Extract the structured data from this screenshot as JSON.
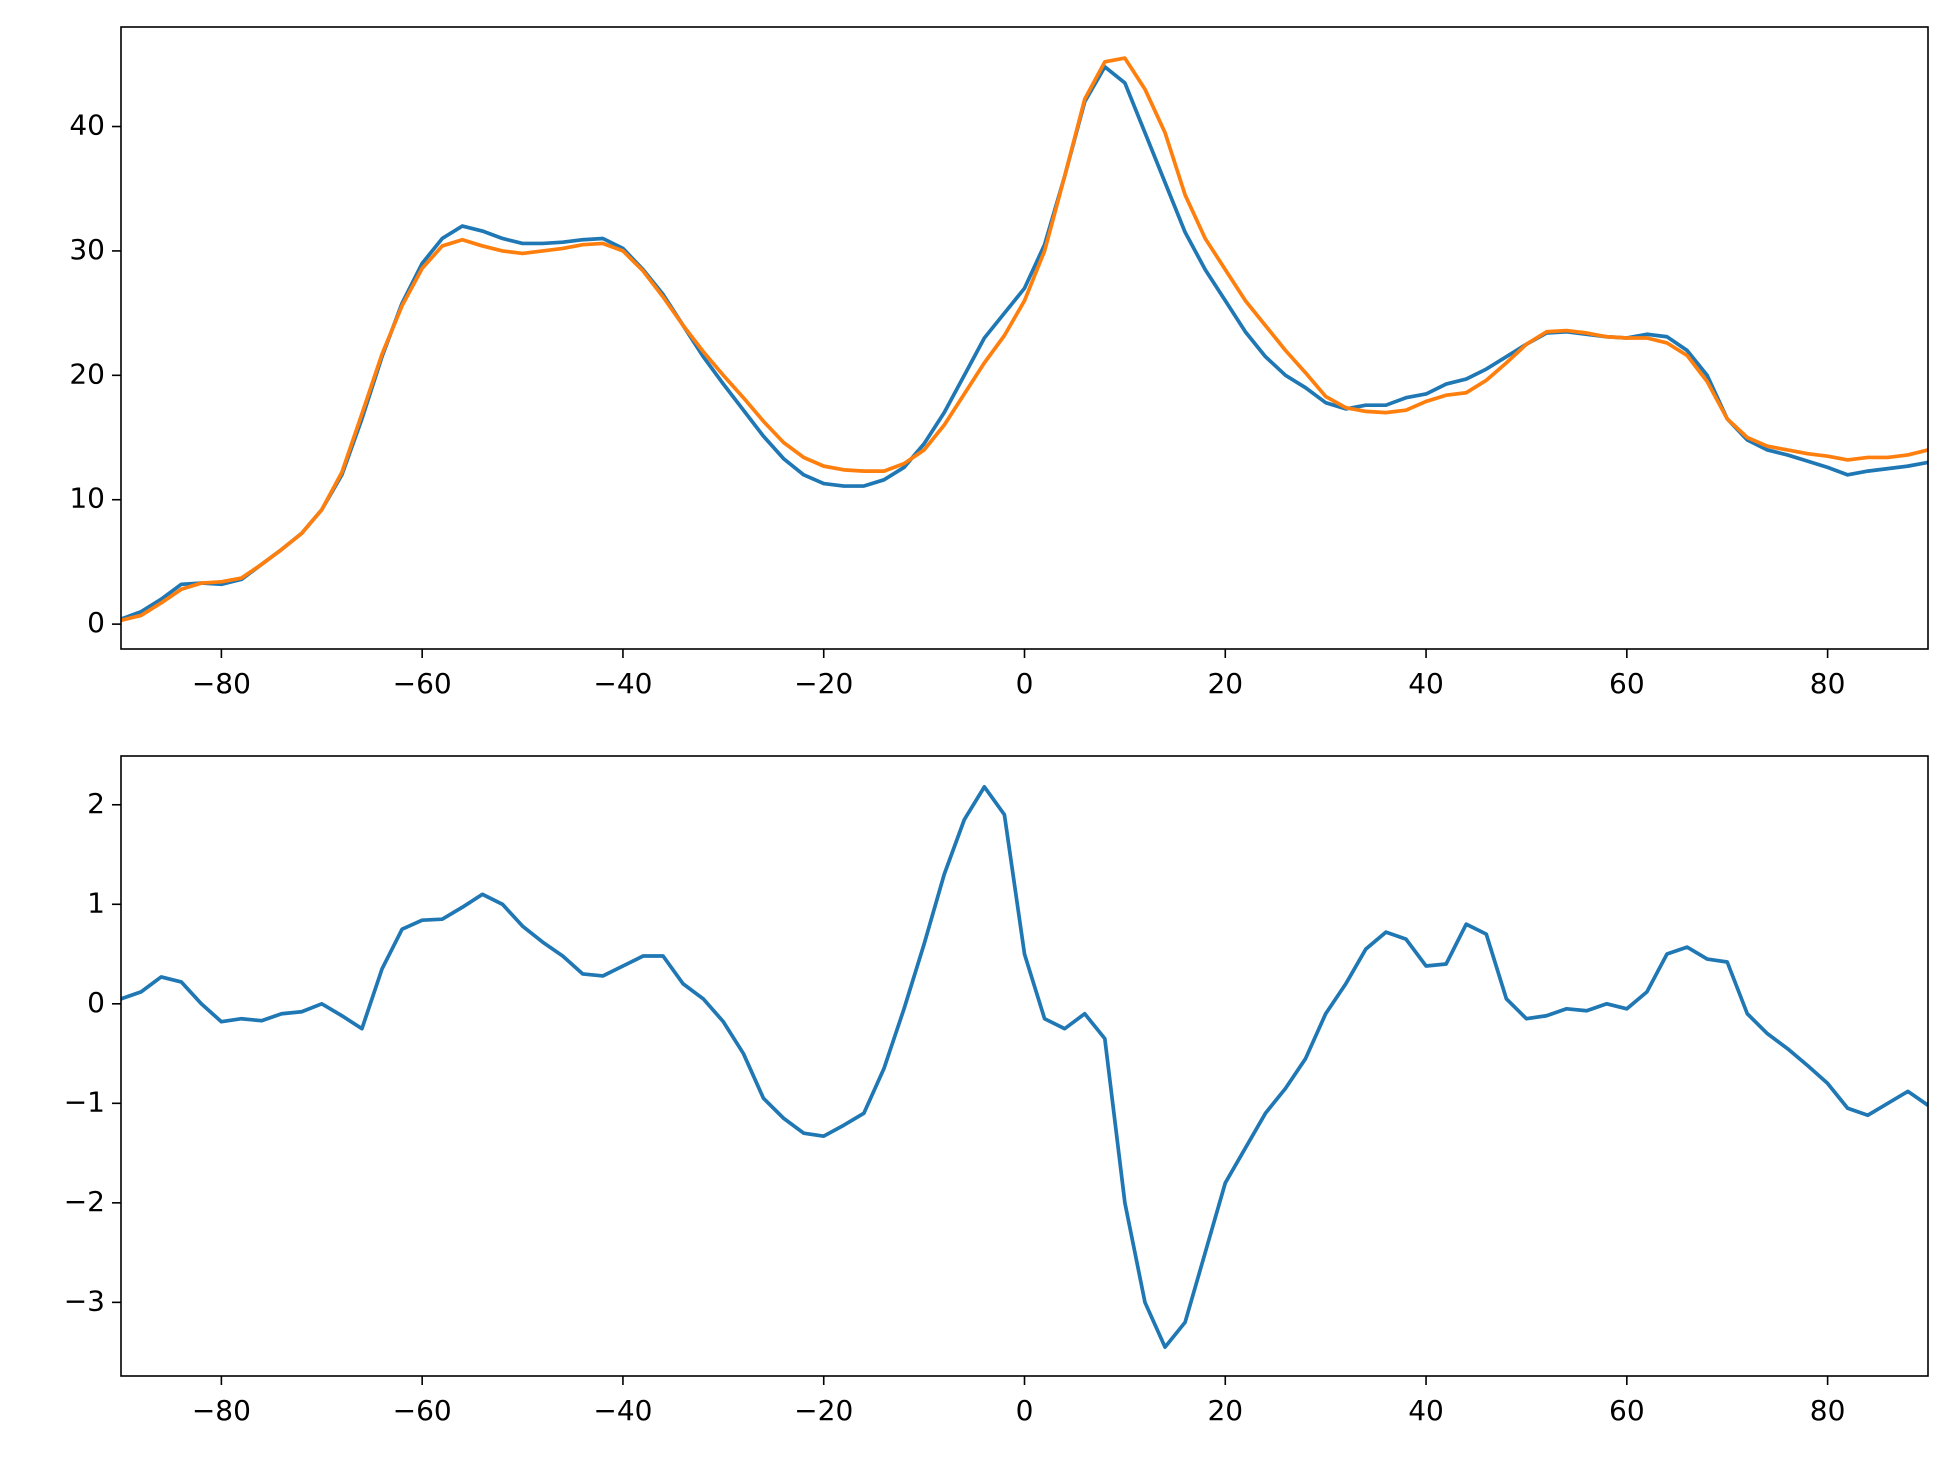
{
  "chart_data": [
    {
      "type": "line",
      "x": [
        -90,
        -88,
        -86,
        -84,
        -82,
        -80,
        -78,
        -76,
        -74,
        -72,
        -70,
        -68,
        -66,
        -64,
        -62,
        -60,
        -58,
        -56,
        -54,
        -52,
        -50,
        -48,
        -46,
        -44,
        -42,
        -40,
        -38,
        -36,
        -34,
        -32,
        -30,
        -28,
        -26,
        -24,
        -22,
        -20,
        -18,
        -16,
        -14,
        -12,
        -10,
        -8,
        -6,
        -4,
        -2,
        0,
        2,
        4,
        6,
        8,
        10,
        12,
        14,
        16,
        18,
        20,
        22,
        24,
        26,
        28,
        30,
        32,
        34,
        36,
        38,
        40,
        42,
        44,
        46,
        48,
        50,
        52,
        54,
        56,
        58,
        60,
        62,
        64,
        66,
        68,
        70,
        72,
        74,
        76,
        78,
        80,
        82,
        84,
        86,
        88,
        90
      ],
      "series": [
        {
          "color": "#1f77b4",
          "values": [
            0.4,
            1.0,
            2.0,
            3.2,
            3.3,
            3.2,
            3.6,
            4.8,
            6.0,
            7.3,
            9.2,
            12,
            16.5,
            21.5,
            25.8,
            29,
            31,
            32,
            31.6,
            31,
            30.6,
            30.6,
            30.7,
            30.9,
            31,
            30.2,
            28.5,
            26.5,
            24,
            21.5,
            19.3,
            17.2,
            15.1,
            13.3,
            12.0,
            11.3,
            11.1,
            11.1,
            11.6,
            12.6,
            14.5,
            17,
            20,
            23,
            25,
            27,
            30.5,
            36,
            42,
            44.8,
            43.5,
            39.5,
            35.5,
            31.5,
            28.5,
            26,
            23.5,
            21.5,
            20,
            19,
            17.8,
            17.3,
            17.6,
            17.6,
            18.2,
            18.5,
            19.3,
            19.7,
            20.5,
            21.5,
            22.5,
            23.4,
            23.5,
            23.3,
            23.1,
            23.0,
            23.3,
            23.1,
            22,
            20,
            16.5,
            14.8,
            14,
            13.6,
            13.1,
            12.6,
            12.0,
            12.3,
            12.5,
            12.7,
            13.0
          ]
        },
        {
          "color": "#ff7f0e",
          "values": [
            0.3,
            0.7,
            1.7,
            2.8,
            3.3,
            3.4,
            3.7,
            4.8,
            6.0,
            7.3,
            9.2,
            12.2,
            16.9,
            21.7,
            25.6,
            28.6,
            30.4,
            30.9,
            30.4,
            30,
            29.8,
            30,
            30.2,
            30.5,
            30.6,
            30,
            28.4,
            26.3,
            24,
            21.9,
            20,
            18.2,
            16.3,
            14.6,
            13.4,
            12.7,
            12.4,
            12.3,
            12.3,
            12.9,
            14,
            16,
            18.5,
            21,
            23.2,
            26,
            30,
            36,
            42.2,
            45.2,
            45.5,
            43,
            39.5,
            34.5,
            31,
            28.5,
            26,
            24,
            22,
            20.2,
            18.3,
            17.4,
            17.1,
            17.0,
            17.2,
            17.9,
            18.4,
            18.6,
            19.6,
            21,
            22.5,
            23.5,
            23.6,
            23.4,
            23.1,
            23.0,
            23.0,
            22.6,
            21.6,
            19.5,
            16.5,
            15,
            14.3,
            14.0,
            13.7,
            13.5,
            13.2,
            13.4,
            13.4,
            13.6,
            14.0
          ]
        }
      ],
      "xlim": [
        -90,
        90
      ],
      "xticks": [
        {
          "value": -80,
          "label": "−80"
        },
        {
          "value": -60,
          "label": "−60"
        },
        {
          "value": -40,
          "label": "−40"
        },
        {
          "value": -20,
          "label": "−20"
        },
        0,
        20,
        40,
        60,
        80
      ],
      "ylim": [
        -2,
        48
      ],
      "yticks": [
        0,
        10,
        20,
        30,
        40
      ]
    },
    {
      "type": "line",
      "x": [
        -90,
        -88,
        -86,
        -84,
        -82,
        -80,
        -78,
        -76,
        -74,
        -72,
        -70,
        -68,
        -66,
        -64,
        -62,
        -60,
        -58,
        -56,
        -54,
        -52,
        -50,
        -48,
        -46,
        -44,
        -42,
        -40,
        -38,
        -36,
        -34,
        -32,
        -30,
        -28,
        -26,
        -24,
        -22,
        -20,
        -18,
        -16,
        -14,
        -12,
        -10,
        -8,
        -6,
        -4,
        -2,
        0,
        2,
        4,
        6,
        8,
        10,
        12,
        14,
        16,
        18,
        20,
        22,
        24,
        26,
        28,
        30,
        32,
        34,
        36,
        38,
        40,
        42,
        44,
        46,
        48,
        50,
        52,
        54,
        56,
        58,
        60,
        62,
        64,
        66,
        68,
        70,
        72,
        74,
        76,
        78,
        80,
        82,
        84,
        86,
        88,
        90
      ],
      "series": [
        {
          "color": "#1f77b4",
          "values": [
            0.05,
            0.12,
            0.27,
            0.22,
            0.0,
            -0.18,
            -0.15,
            -0.17,
            -0.1,
            -0.08,
            0.0,
            -0.12,
            -0.25,
            0.35,
            0.75,
            0.84,
            0.85,
            0.97,
            1.1,
            1.0,
            0.78,
            0.62,
            0.48,
            0.3,
            0.28,
            0.38,
            0.48,
            0.48,
            0.2,
            0.05,
            -0.18,
            -0.5,
            -0.95,
            -1.15,
            -1.3,
            -1.33,
            -1.22,
            -1.1,
            -0.65,
            -0.05,
            0.6,
            1.3,
            1.85,
            2.18,
            1.9,
            0.5,
            -0.15,
            -0.25,
            -0.1,
            -0.35,
            -2.0,
            -3.0,
            -3.45,
            -3.2,
            -2.5,
            -1.8,
            -1.45,
            -1.1,
            -0.85,
            -0.55,
            -0.1,
            0.2,
            0.55,
            0.72,
            0.65,
            0.38,
            0.4,
            0.8,
            0.7,
            0.05,
            -0.15,
            -0.12,
            -0.05,
            -0.07,
            0.0,
            -0.05,
            0.12,
            0.5,
            0.57,
            0.45,
            0.42,
            -0.1,
            -0.3,
            -0.45,
            -0.62,
            -0.8,
            -1.05,
            -1.12,
            -1.0,
            -0.88,
            -1.02
          ]
        }
      ],
      "xlim": [
        -90,
        90
      ],
      "xticks": [
        {
          "value": -80,
          "label": "−80"
        },
        {
          "value": -60,
          "label": "−60"
        },
        {
          "value": -40,
          "label": "−40"
        },
        {
          "value": -20,
          "label": "−20"
        },
        0,
        20,
        40,
        60,
        80
      ],
      "ylim": [
        -3.74,
        2.49
      ],
      "yticks": [
        {
          "value": -3,
          "label": "−3"
        },
        {
          "value": -2,
          "label": "−2"
        },
        {
          "value": -1,
          "label": "−1"
        },
        0,
        1,
        2
      ]
    }
  ]
}
